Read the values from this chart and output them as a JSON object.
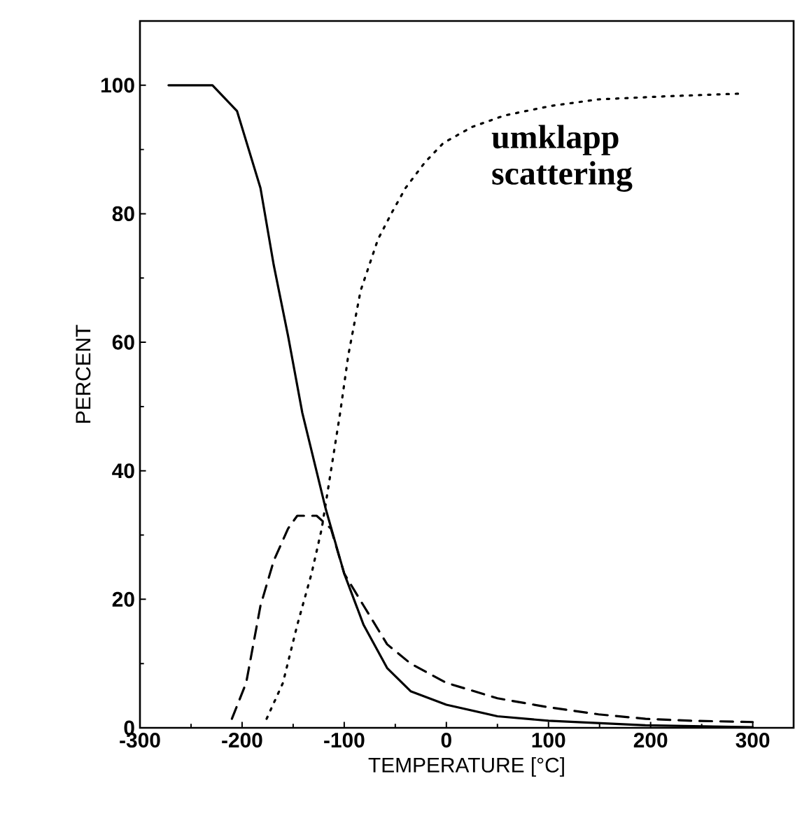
{
  "chart_data": {
    "type": "line",
    "xlabel": "TEMPERATURE [°C]",
    "ylabel": "PERCENT",
    "xlim": [
      -300,
      340
    ],
    "ylim": [
      0,
      110
    ],
    "xticks": [
      -300,
      -200,
      -100,
      0,
      100,
      200,
      300
    ],
    "yticks": [
      0,
      20,
      40,
      60,
      80,
      100
    ],
    "grid": false,
    "marker": "none",
    "annotations": [
      "umklapp scattering"
    ],
    "series": [
      {
        "color": "#000000",
        "line_style": "solid",
        "x": [
          -272,
          -229,
          -205,
          -182,
          -169,
          -155,
          -141,
          -118,
          -100,
          -81,
          -58,
          -35,
          0,
          50,
          100,
          195,
          300
        ],
        "values": [
          100,
          100,
          96,
          84,
          72,
          61,
          49,
          34,
          24,
          16,
          9.3,
          5.7,
          3.6,
          1.8,
          1.1,
          0.4,
          0.1
        ]
      },
      {
        "color": "#000000",
        "line_style": "dashed",
        "x": [
          -210,
          -196,
          -182,
          -169,
          -155,
          -146,
          -127,
          -113,
          -100,
          -81,
          -58,
          -35,
          0,
          50,
          100,
          149,
          195,
          241,
          300
        ],
        "values": [
          1.4,
          7,
          19,
          26,
          31,
          33,
          33,
          31,
          24,
          19,
          13,
          10,
          7,
          4.6,
          3.2,
          2.1,
          1.4,
          1.1,
          0.9
        ]
      },
      {
        "color": "#000000",
        "line_style": "dotted",
        "x": [
          -176,
          -160,
          -146,
          -132,
          -122,
          -113,
          -104,
          -96,
          -84,
          -67,
          -54,
          -40,
          -21,
          -3,
          25,
          57,
          103,
          149,
          218,
          288
        ],
        "values": [
          1.4,
          7,
          16,
          24,
          31,
          40,
          49,
          58,
          68,
          76,
          80,
          84,
          88,
          91,
          93.5,
          95.3,
          96.8,
          97.8,
          98.3,
          98.7
        ]
      }
    ]
  }
}
